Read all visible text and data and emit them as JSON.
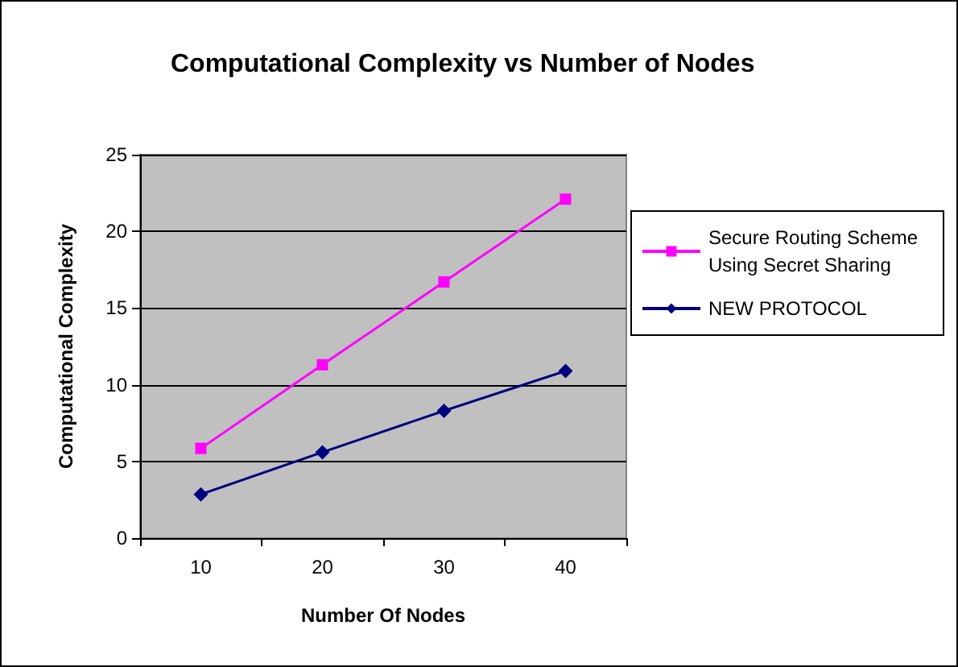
{
  "chart_data": {
    "type": "line",
    "title": "Computational Complexity vs Number of Nodes",
    "xlabel": "Number Of Nodes",
    "ylabel": "Computational Complexity",
    "categories": [
      "10",
      "20",
      "30",
      "40"
    ],
    "series": [
      {
        "name": "Secure Routing Scheme Using Secret Sharing",
        "color": "#ff00ff",
        "marker": "square",
        "values": [
          5.85,
          11.3,
          16.7,
          22.1
        ]
      },
      {
        "name": "NEW PROTOCOL",
        "color": "#000080",
        "marker": "diamond",
        "values": [
          2.85,
          5.6,
          8.3,
          10.9
        ]
      }
    ],
    "ylim": [
      0,
      25
    ],
    "yticks": [
      0,
      5,
      10,
      15,
      20,
      25
    ],
    "grid": "y",
    "legend": "right"
  }
}
